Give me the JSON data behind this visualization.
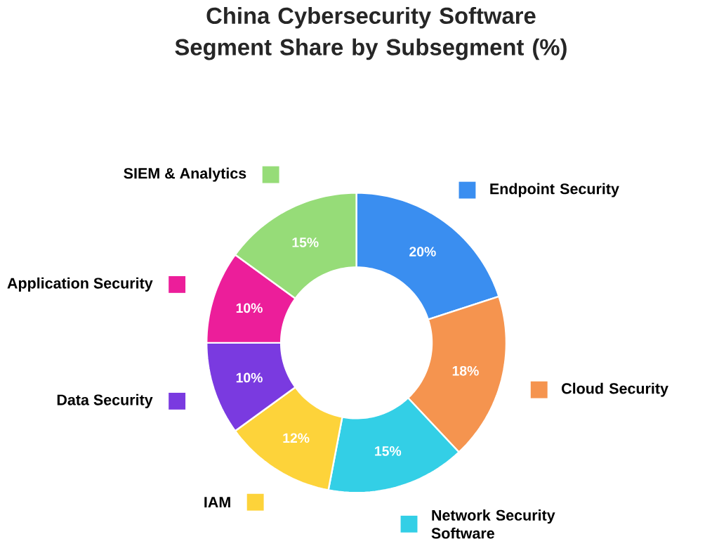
{
  "chart_data": {
    "type": "donut",
    "title": "China Cybersecurity Software Segment Share by Subsegment (%)",
    "categories": [
      "Endpoint Security",
      "Cloud Security",
      "Network Security Software",
      "IAM",
      "Data Security",
      "Application Security",
      "SIEM & Analytics"
    ],
    "values": [
      20,
      18,
      15,
      12,
      10,
      10,
      15
    ],
    "value_labels": [
      "20%",
      "18%",
      "15%",
      "12%",
      "10%",
      "10%",
      "15%"
    ],
    "legend": "left",
    "colors": [
      "#3a8ef0",
      "#f5944f",
      "#33cfe6",
      "#fdd33a",
      "#7a3ae0",
      "#ec1e9a",
      "#96dc78"
    ]
  }
}
